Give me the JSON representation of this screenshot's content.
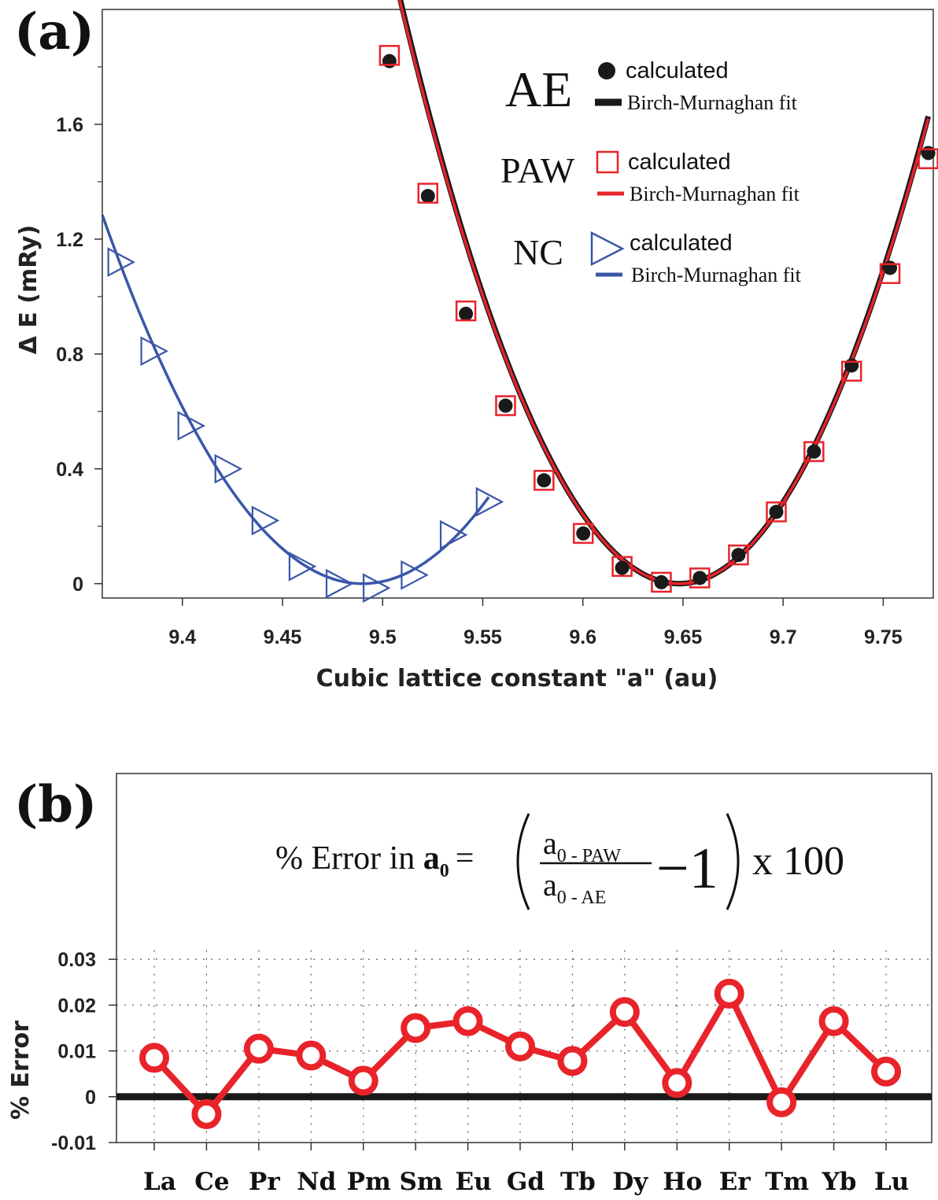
{
  "panel_a": {
    "label": "(a)",
    "colors": {
      "ae": "#1a1a1a",
      "paw": "#e8232a",
      "nc": "#3a56a8"
    },
    "legend": {
      "groups": [
        {
          "name": "AE",
          "marker": "filled-circle",
          "calc_label": "calculated",
          "fit_label": "Birch-Murnaghan  fit"
        },
        {
          "name": "PAW",
          "marker": "open-square",
          "calc_label": "calculated",
          "fit_label": "Birch-Murnaghan  fit"
        },
        {
          "name": "NC",
          "marker": "open-triangle-right",
          "calc_label": "calculated",
          "fit_label": "Birch-Murnaghan  fit"
        }
      ],
      "placement": "top-right"
    }
  },
  "panel_b": {
    "label": "(b)",
    "formula": {
      "lhs_prefix": "% Error in ",
      "lhs_var": "a",
      "lhs_sub": "0",
      "eq": "=",
      "num_base": "a",
      "num_sub": "0 - PAW",
      "den_base": "a",
      "den_sub": "0 - AE",
      "minus_one": "−1",
      "times": "x 100"
    }
  },
  "chart_data": [
    {
      "type": "scatter",
      "xlabel": "Cubic lattice constant \"a\" (au)",
      "ylabel": "Δ E (mRy)",
      "xlim": [
        9.36,
        9.775
      ],
      "ylim": [
        -0.05,
        2.0
      ],
      "xticks": [
        "9.4",
        "9.45",
        "9.5",
        "9.55",
        "9.6",
        "9.65",
        "9.7",
        "9.75"
      ],
      "yticks": [
        "0",
        "0.4",
        "0.8",
        "1.2",
        "1.6"
      ],
      "series": [
        {
          "name": "AE calculated",
          "marker": "filled-circle",
          "color": "#1a1a1a",
          "x": [
            9.5034,
            9.5226,
            9.5416,
            9.5614,
            9.5806,
            9.6002,
            9.6196,
            9.6392,
            9.6584,
            9.6777,
            9.6966,
            9.7154,
            9.7342,
            9.7534,
            9.7725
          ],
          "y": [
            1.82,
            1.35,
            0.94,
            0.62,
            0.36,
            0.175,
            0.055,
            0.005,
            0.02,
            0.1,
            0.25,
            0.46,
            0.76,
            1.1,
            1.5
          ]
        },
        {
          "name": "PAW calculated",
          "marker": "open-square",
          "color": "#e8232a",
          "x": [
            9.5034,
            9.5226,
            9.5416,
            9.5614,
            9.5806,
            9.6002,
            9.6196,
            9.6392,
            9.6584,
            9.6777,
            9.6966,
            9.7154,
            9.7342,
            9.7534,
            9.7725
          ],
          "y": [
            1.84,
            1.36,
            0.95,
            0.62,
            0.36,
            0.175,
            0.06,
            0.005,
            0.02,
            0.1,
            0.25,
            0.46,
            0.74,
            1.08,
            1.48
          ]
        },
        {
          "name": "NC calculated",
          "marker": "open-triangle-right",
          "color": "#3a56a8",
          "x": [
            9.3685,
            9.385,
            9.4035,
            9.422,
            9.4405,
            9.459,
            9.4775,
            9.496,
            9.515,
            9.5345,
            9.5525
          ],
          "y": [
            1.12,
            0.81,
            0.55,
            0.4,
            0.22,
            0.06,
            0.0,
            -0.015,
            0.03,
            0.17,
            0.285
          ]
        }
      ],
      "fits": [
        {
          "name": "AE Birch-Murnaghan fit",
          "color": "#1a1a1a",
          "a0": 9.648,
          "c": 105.0,
          "x_range": [
            9.5034,
            9.7725
          ]
        },
        {
          "name": "PAW Birch-Murnaghan fit",
          "color": "#e8232a",
          "a0": 9.648,
          "c": 104.5,
          "x_range": [
            9.5034,
            9.7725
          ]
        },
        {
          "name": "NC Birch-Murnaghan fit",
          "color": "#3a56a8",
          "a0": 9.49,
          "c": 76.0,
          "x_range": [
            9.36,
            9.553
          ]
        }
      ]
    },
    {
      "type": "line",
      "ylabel": "% Error",
      "categories": [
        "La",
        "Ce",
        "Pr",
        "Nd",
        "Pm",
        "Sm",
        "Eu",
        "Gd",
        "Tb",
        "Dy",
        "Ho",
        "Er",
        "Tm",
        "Yb",
        "Lu"
      ],
      "values": [
        0.0085,
        -0.0038,
        0.0105,
        0.009,
        0.0035,
        0.015,
        0.0165,
        0.011,
        0.0078,
        0.0185,
        0.003,
        0.0225,
        -0.0012,
        0.0165,
        0.0055
      ],
      "ylim": [
        -0.01,
        0.035
      ],
      "yticks": [
        "-0.01",
        "0",
        "0.01",
        "0.02",
        "0.03"
      ],
      "grid": true,
      "color": "#e8232a",
      "zero_line": true
    }
  ]
}
